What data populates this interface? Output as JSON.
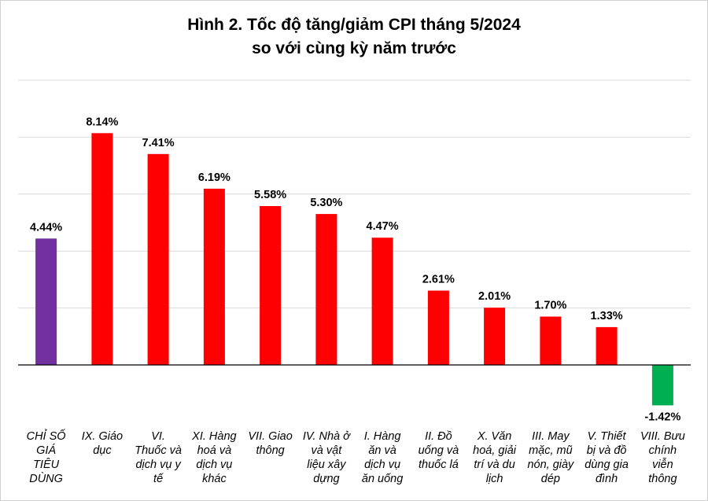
{
  "chart_data": {
    "type": "bar",
    "title": "Hình 2. Tốc độ tăng/giảm CPI tháng 5/2024",
    "subtitle": "so với cùng kỳ năm trước",
    "xlabel": "",
    "ylabel": "",
    "ylim": [
      -2,
      10
    ],
    "grid": true,
    "legend": "none",
    "value_suffix": "%",
    "categories": [
      "CHỈ SỐ GIÁ TIÊU DÙNG",
      "IX. Giáo dục",
      "VI. Thuốc và dịch vụ y tế",
      "XI. Hàng hoá và dịch vụ khác",
      "VII. Giao thông",
      "IV. Nhà ở và vật liệu xây dựng",
      "I. Hàng ăn và dịch vụ ăn uống",
      "II. Đồ uống và thuốc lá",
      "X. Văn hoá, giải trí và du lịch",
      "III. May mặc, mũ nón, giày dép",
      "V. Thiết bị và đồ dùng gia đình",
      "VIII. Bưu chính viễn thông"
    ],
    "category_lines": [
      [
        "CHỈ SỐ",
        "GIÁ",
        "TIÊU",
        "DÙNG"
      ],
      [
        "IX. Giáo",
        "dục"
      ],
      [
        "VI.",
        "Thuốc và",
        "dịch vụ y",
        "tế"
      ],
      [
        "XI. Hàng",
        "hoá và",
        "dịch vụ",
        "khác"
      ],
      [
        "VII. Giao",
        "thông"
      ],
      [
        "IV. Nhà ở",
        "và vật",
        "liệu xây",
        "dựng"
      ],
      [
        "I. Hàng",
        "ăn và",
        "dịch vụ",
        "ăn uống"
      ],
      [
        "II. Đồ",
        "uống và",
        "thuốc lá"
      ],
      [
        "X. Văn",
        "hoá, giải",
        "trí và du",
        "lịch"
      ],
      [
        "III. May",
        "mặc, mũ",
        "nón, giày",
        "dép"
      ],
      [
        "V. Thiết",
        "bị và đồ",
        "dùng gia",
        "đình"
      ],
      [
        "VIII. Bưu",
        "chính",
        "viễn",
        "thông"
      ]
    ],
    "values": [
      4.44,
      8.14,
      7.41,
      6.19,
      5.58,
      5.3,
      4.47,
      2.61,
      2.01,
      1.7,
      1.33,
      -1.42
    ],
    "data_labels": [
      "4.44%",
      "8.14%",
      "7.41%",
      "6.19%",
      "5.58%",
      "5.30%",
      "4.47%",
      "2.61%",
      "2.01%",
      "1.70%",
      "1.33%",
      "-1.42%"
    ],
    "colors": {
      "index": "#7030a0",
      "increase": "#ff0000",
      "decrease": "#00b050",
      "grid": "#d9d9d9",
      "axis": "#000000"
    }
  }
}
